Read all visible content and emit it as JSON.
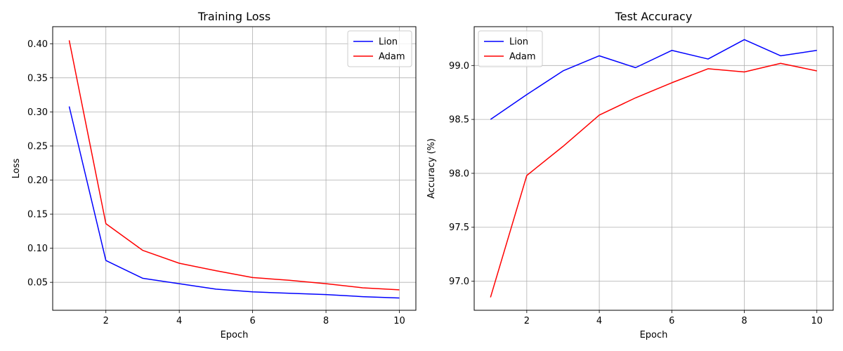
{
  "chart_data": [
    {
      "type": "line",
      "title": "Training Loss",
      "xlabel": "Epoch",
      "ylabel": "Loss",
      "xlim": [
        0.55,
        10.45
      ],
      "ylim": [
        0.009,
        0.425
      ],
      "x": [
        1,
        2,
        3,
        4,
        5,
        6,
        7,
        8,
        9,
        10
      ],
      "xticks": [
        2,
        4,
        6,
        8,
        10
      ],
      "xtick_labels": [
        "2",
        "4",
        "6",
        "8",
        "10"
      ],
      "yticks": [
        0.05,
        0.1,
        0.15,
        0.2,
        0.25,
        0.3,
        0.35,
        0.4
      ],
      "ytick_labels": [
        "0.05",
        "0.10",
        "0.15",
        "0.20",
        "0.25",
        "0.30",
        "0.35",
        "0.40"
      ],
      "grid": true,
      "legend_position": "top-right",
      "series": [
        {
          "name": "Lion",
          "color": "#0000ff",
          "values": [
            0.308,
            0.082,
            0.056,
            0.048,
            0.04,
            0.036,
            0.034,
            0.032,
            0.029,
            0.027
          ]
        },
        {
          "name": "Adam",
          "color": "#ff0000",
          "values": [
            0.405,
            0.136,
            0.097,
            0.078,
            0.067,
            0.057,
            0.053,
            0.048,
            0.042,
            0.039
          ]
        }
      ]
    },
    {
      "type": "line",
      "title": "Test Accuracy",
      "xlabel": "Epoch",
      "ylabel": "Accuracy (%)",
      "xlim": [
        0.55,
        10.45
      ],
      "ylim": [
        96.73,
        99.36
      ],
      "x": [
        1,
        2,
        3,
        4,
        5,
        6,
        7,
        8,
        9,
        10
      ],
      "xticks": [
        2,
        4,
        6,
        8,
        10
      ],
      "xtick_labels": [
        "2",
        "4",
        "6",
        "8",
        "10"
      ],
      "yticks": [
        97.0,
        97.5,
        98.0,
        98.5,
        99.0
      ],
      "ytick_labels": [
        "97.0",
        "97.5",
        "98.0",
        "98.5",
        "99.0"
      ],
      "grid": true,
      "legend_position": "top-left",
      "series": [
        {
          "name": "Lion",
          "color": "#0000ff",
          "values": [
            98.5,
            98.73,
            98.95,
            99.09,
            98.98,
            99.14,
            99.06,
            99.24,
            99.09,
            99.14
          ]
        },
        {
          "name": "Adam",
          "color": "#ff0000",
          "values": [
            96.85,
            97.98,
            98.25,
            98.54,
            98.7,
            98.84,
            98.97,
            98.94,
            99.02,
            98.95
          ]
        }
      ]
    }
  ]
}
